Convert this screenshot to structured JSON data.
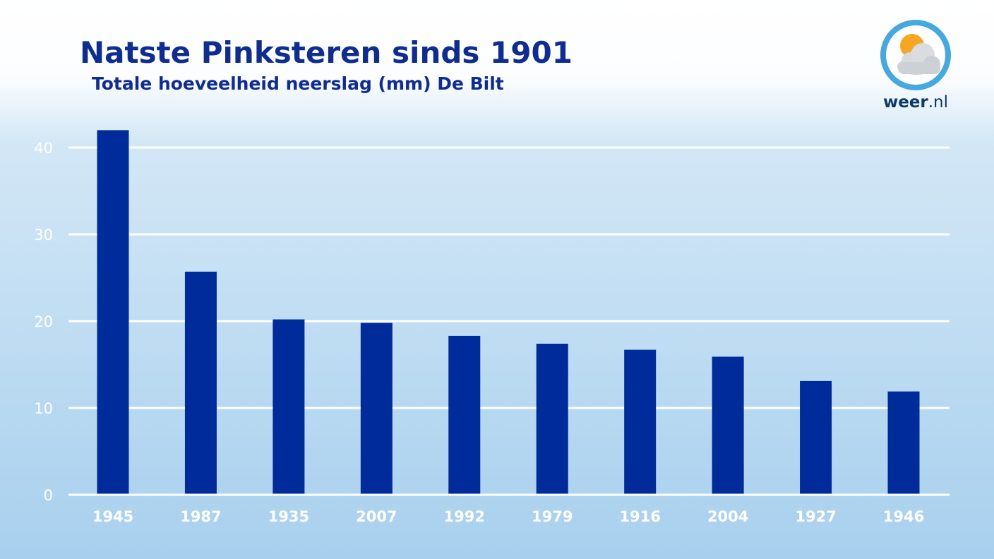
{
  "chart_data": {
    "type": "bar",
    "title": "Natste Pinksteren sinds 1901",
    "subtitle": "Totale hoeveelheid neerslag (mm) De Bilt",
    "categories": [
      "1945",
      "1987",
      "1935",
      "2007",
      "1992",
      "1979",
      "1916",
      "2004",
      "1927",
      "1946"
    ],
    "values": [
      42.0,
      25.7,
      20.2,
      19.8,
      18.3,
      17.4,
      16.7,
      15.9,
      13.1,
      11.9
    ],
    "yticks": [
      0,
      10,
      20,
      30,
      40
    ],
    "ylim": [
      0,
      45
    ],
    "grid": true,
    "colors": {
      "bar": "#002b9a",
      "grid": "#ffffff",
      "tick_label": "#ffffff"
    }
  },
  "logo": {
    "brand_bold": "weer",
    "brand_rest": ".nl",
    "icon": "sun-behind-cloud-icon",
    "colors": {
      "ring": "#45a8e0",
      "sun": "#f5a623",
      "cloud": "#cfd3d8"
    }
  }
}
